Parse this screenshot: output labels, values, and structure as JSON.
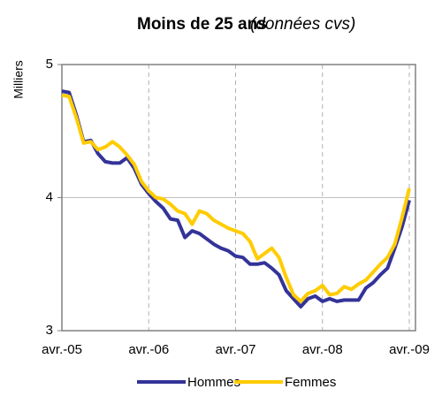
{
  "chart_data": {
    "type": "line",
    "title": "Moins de 25 ans",
    "subtitle": "(données cvs)",
    "y_label": "Milliers",
    "categories": [
      "avr.-05",
      null,
      null,
      null,
      null,
      null,
      null,
      null,
      null,
      null,
      null,
      null,
      "avr.-06",
      null,
      null,
      null,
      null,
      null,
      null,
      null,
      null,
      null,
      null,
      null,
      "avr.-07",
      null,
      null,
      null,
      null,
      null,
      null,
      null,
      null,
      null,
      null,
      null,
      "avr.-08",
      null,
      null,
      null,
      null,
      null,
      null,
      null,
      null,
      null,
      null,
      null,
      "avr.-09"
    ],
    "series": [
      {
        "name": "Hommes",
        "color": "#333399",
        "values": [
          4.8,
          4.79,
          4.62,
          4.42,
          4.43,
          4.33,
          4.27,
          4.26,
          4.26,
          4.3,
          4.22,
          4.1,
          4.03,
          3.97,
          3.92,
          3.84,
          3.83,
          3.7,
          3.75,
          3.73,
          3.69,
          3.65,
          3.62,
          3.6,
          3.56,
          3.55,
          3.5,
          3.5,
          3.51,
          3.47,
          3.42,
          3.3,
          3.24,
          3.18,
          3.24,
          3.26,
          3.22,
          3.24,
          3.22,
          3.23,
          3.23,
          3.23,
          3.32,
          3.36,
          3.42,
          3.47,
          3.62,
          3.78,
          3.98
        ]
      },
      {
        "name": "Femmes",
        "color": "#ffcc00",
        "values": [
          4.77,
          4.76,
          4.6,
          4.41,
          4.42,
          4.36,
          4.38,
          4.42,
          4.38,
          4.32,
          4.25,
          4.12,
          4.05,
          4.0,
          3.99,
          3.95,
          3.9,
          3.88,
          3.8,
          3.9,
          3.88,
          3.83,
          3.8,
          3.77,
          3.75,
          3.73,
          3.67,
          3.54,
          3.58,
          3.62,
          3.55,
          3.4,
          3.27,
          3.22,
          3.28,
          3.3,
          3.34,
          3.27,
          3.28,
          3.33,
          3.31,
          3.35,
          3.38,
          3.44,
          3.5,
          3.55,
          3.65,
          3.85,
          4.07
        ]
      }
    ],
    "ylim": [
      3,
      5
    ],
    "yticks": [
      3,
      4,
      5
    ],
    "grid": true,
    "legend": "bottom"
  }
}
